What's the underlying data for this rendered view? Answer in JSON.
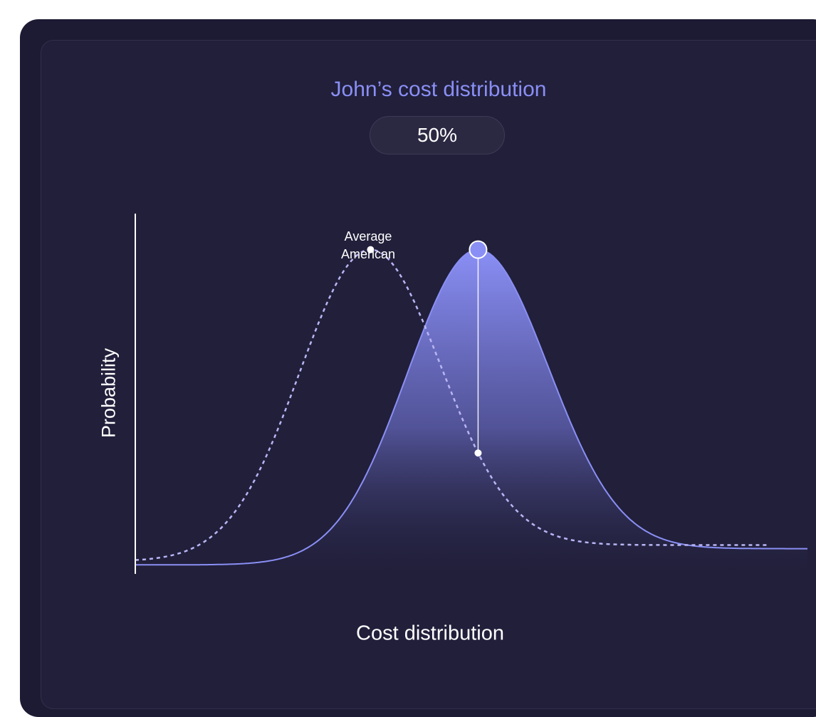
{
  "chart_data": {
    "type": "area",
    "title": "John’s cost distribution",
    "badge": "50%",
    "xlabel": "Cost distribution",
    "ylabel": "Probability",
    "xlim": [
      0,
      100
    ],
    "ylim": [
      0,
      1
    ],
    "grid": false,
    "series": [
      {
        "kind": "filled-area",
        "color": "#8a8ff5",
        "mean": 51,
        "sd": 10.5,
        "baseline_left": 0.025,
        "baseline_right": 0.07
      },
      {
        "kind": "dashed-line",
        "color": "#b9b5f5",
        "mean": 35,
        "sd": 10.5,
        "peak": 0.9,
        "baseline_left": 0.035,
        "baseline_right": 0.08
      }
    ],
    "annotations": [
      {
        "label": "Average American",
        "lines": [
          "Average",
          "American"
        ],
        "x": 35
      }
    ],
    "marker": {
      "x": 51,
      "value": "50%"
    },
    "colors": {
      "accent": "#8a8ff5",
      "background": "#211f3a"
    }
  }
}
